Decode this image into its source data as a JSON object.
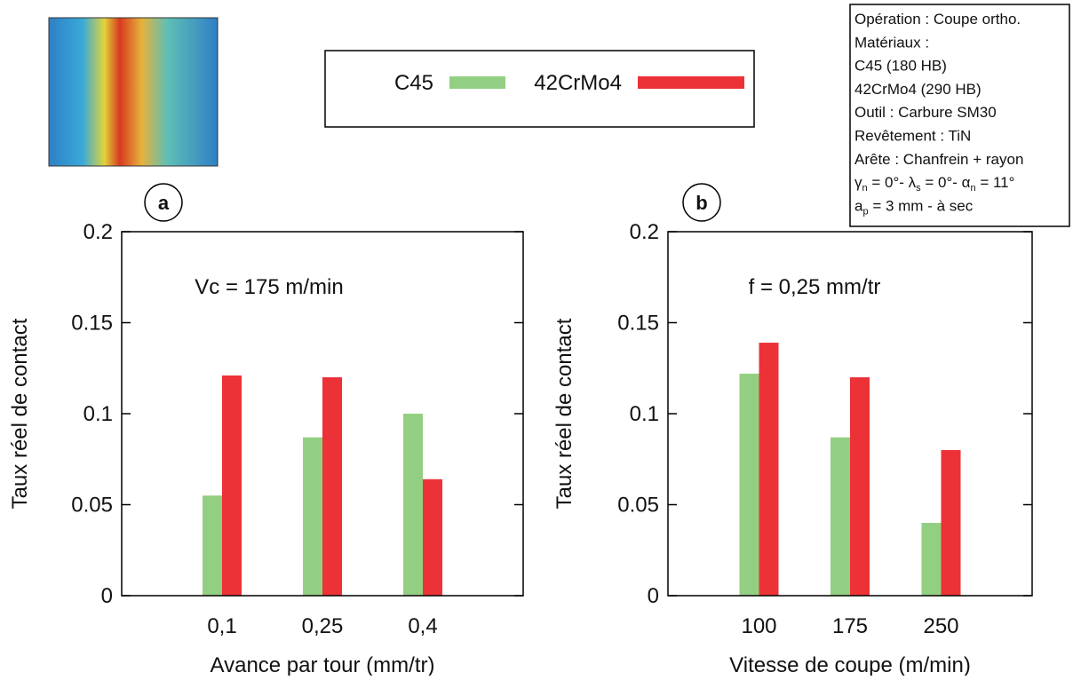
{
  "chart_data": [
    {
      "type": "bar",
      "panel": "a",
      "annotation": "Vc = 175 m/min",
      "xlabel": "Avance par tour (mm/tr)",
      "ylabel": "Taux réel de contact",
      "categories": [
        "0,1",
        "0,25",
        "0,4"
      ],
      "series": [
        {
          "name": "C45",
          "color": "#93cf82",
          "values": [
            0.055,
            0.087,
            0.1
          ]
        },
        {
          "name": "42CrMo4",
          "color": "#ec3237",
          "values": [
            0.121,
            0.12,
            0.064
          ]
        }
      ],
      "ylim": [
        0,
        0.2
      ],
      "yticks": [
        0,
        0.05,
        0.1,
        0.15,
        0.2
      ]
    },
    {
      "type": "bar",
      "panel": "b",
      "annotation": "f = 0,25 mm/tr",
      "xlabel": "Vitesse de coupe (m/min)",
      "ylabel": "Taux réel de contact",
      "categories": [
        "100",
        "175",
        "250"
      ],
      "series": [
        {
          "color": "#93cf82",
          "values": [
            0.122,
            0.087,
            0.04
          ]
        },
        {
          "color": "#ec3237",
          "values": [
            0.139,
            0.12,
            0.08
          ]
        }
      ],
      "ylim": [
        0,
        0.2
      ],
      "yticks": [
        0,
        0.05,
        0.1,
        0.15,
        0.2
      ]
    }
  ],
  "info_box": [
    [
      {
        "text": "Opération : Coupe ortho."
      }
    ],
    [
      {
        "text": "Matériaux :"
      }
    ],
    [
      {
        "text": "C45 (180 HB)"
      }
    ],
    [
      {
        "text": "42CrMo4 (290 HB)"
      }
    ],
    [
      {
        "text": "Outil : Carbure SM30"
      }
    ],
    [
      {
        "text": "Revêtement : TiN"
      }
    ],
    [
      {
        "text": "Arête : Chanfrein + rayon"
      }
    ],
    [
      {
        "text": "γ"
      },
      {
        "sub": "n"
      },
      {
        "text": " = 0°-  λ"
      },
      {
        "sub": "s"
      },
      {
        "text": " = 0°-  α"
      },
      {
        "sub": "n"
      },
      {
        "text": " = 11°"
      }
    ],
    [
      {
        "text": "a"
      },
      {
        "sub": "p"
      },
      {
        "text": " = 3 mm - à sec"
      }
    ]
  ]
}
